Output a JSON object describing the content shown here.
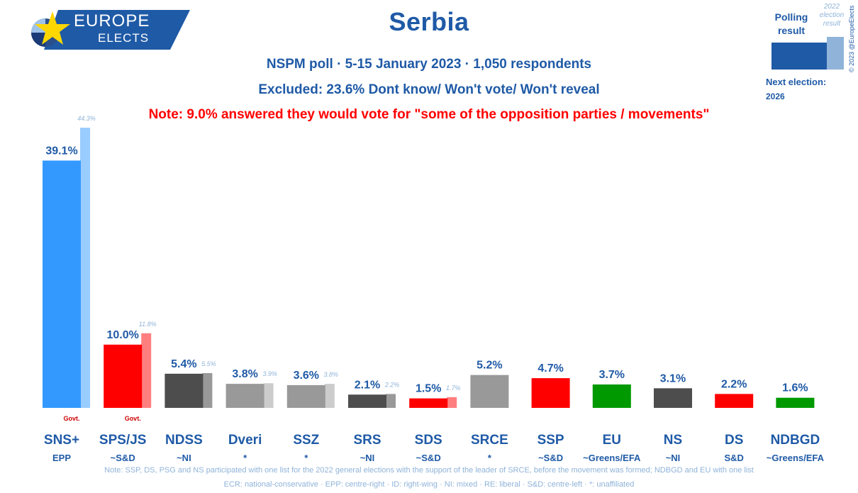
{
  "logo": {
    "line1": "EUROPE",
    "line2": "ELECTS"
  },
  "header": {
    "title": "Serbia",
    "subtitle": "NSPM poll · 5-15 January 2023 · 1,050 respondents",
    "excluded": "Excluded: 23.6% Dont know/ Won't vote/ Won't reveal",
    "note": "Note: 9.0% answered they would vote for \"some of the opposition parties / movements\""
  },
  "legend": {
    "polling_label": "Polling result",
    "previous_label": "2022 election result",
    "next_election_label": "Next election:",
    "next_election_year": "2026",
    "copyright": "© 2023 @EuropeElects"
  },
  "chart_data": {
    "type": "bar",
    "categories": [
      "SNS+",
      "SPS/JS",
      "NDSS",
      "Dveri",
      "SSZ",
      "SRS",
      "SDS",
      "SRCE",
      "SSP",
      "EU",
      "NS",
      "DS",
      "NDBGD"
    ],
    "affiliations": [
      "EPP",
      "~S&D",
      "~NI",
      "*",
      "*",
      "~NI",
      "~S&D",
      "*",
      "~S&D",
      "~Greens/EFA",
      "~NI",
      "S&D",
      "~Greens/EFA"
    ],
    "series": [
      {
        "name": "Polling result",
        "values": [
          39.1,
          10.0,
          5.4,
          3.8,
          3.6,
          2.1,
          1.5,
          5.2,
          4.7,
          3.7,
          3.1,
          2.2,
          1.6
        ]
      },
      {
        "name": "2022 election result",
        "values": [
          44.3,
          11.8,
          5.5,
          3.9,
          3.8,
          2.2,
          1.7,
          null,
          null,
          null,
          null,
          null,
          null
        ]
      }
    ],
    "value_labels": [
      "39.1%",
      "10.0%",
      "5.4%",
      "3.8%",
      "3.6%",
      "2.1%",
      "1.5%",
      "5.2%",
      "4.7%",
      "3.7%",
      "3.1%",
      "2.2%",
      "1.6%"
    ],
    "previous_labels": [
      "44.3%",
      "11.8%",
      "5.5%",
      "3.9%",
      "3.8%",
      "2.2%",
      "1.7%",
      "",
      "",
      "",
      "",
      "",
      ""
    ],
    "government_tags": [
      "Govt.",
      "Govt.",
      "",
      "",
      "",
      "",
      "",
      "",
      "",
      "",
      "",
      "",
      ""
    ],
    "colors": [
      "#3399ff",
      "#ff0000",
      "#4d4d4d",
      "#999999",
      "#999999",
      "#4d4d4d",
      "#ff0000",
      "#999999",
      "#ff0000",
      "#009900",
      "#4d4d4d",
      "#ff0000",
      "#009900"
    ],
    "previous_colors": [
      "#99ccff",
      "#ff7f7f",
      "#999999",
      "#cccccc",
      "#cccccc",
      "#999999",
      "#ff7f7f",
      "",
      "",
      "",
      "",
      "",
      ""
    ],
    "ylim": [
      0,
      44.3
    ]
  },
  "footer": {
    "note": "Note: SSP, DS, PSG and NS participated with one list for the 2022 general elections with the support of the leader of SRCE, before the movement was formed; NDBGD and EU with one list",
    "groups": "ECR: national-conservative · EPP: centre-right · ID: right-wing · NI: mixed · RE: liberal · S&D: centre-left · *: unaffiliated"
  }
}
